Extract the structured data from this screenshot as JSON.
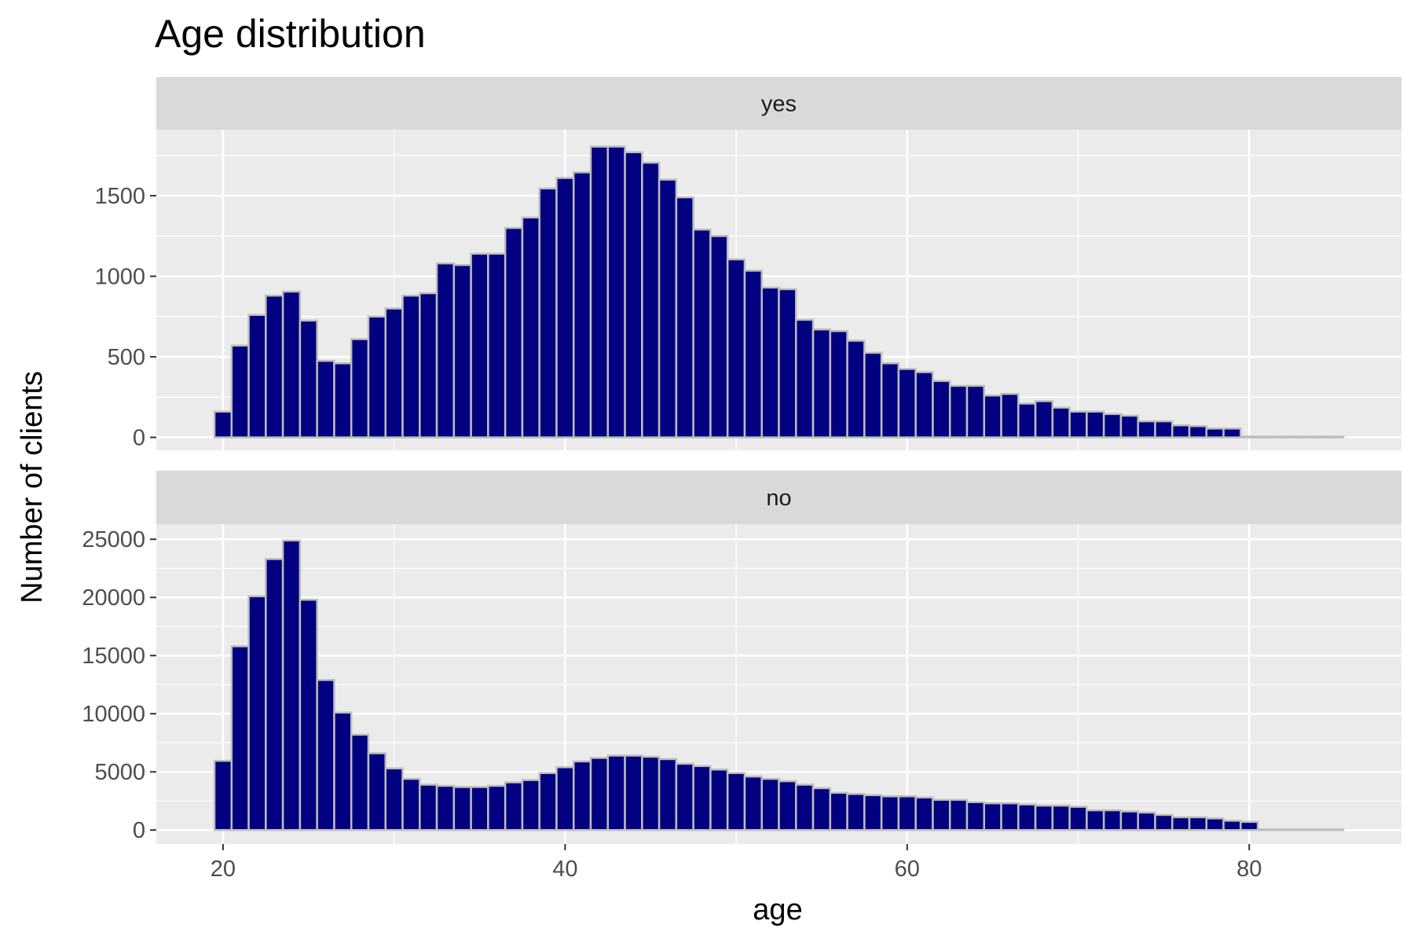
{
  "chart_data": {
    "type": "bar",
    "title": "Age distribution",
    "xlabel": "age",
    "ylabel": "Number of clients",
    "xlim": [
      16.1,
      88.9
    ],
    "xticks": [
      20,
      40,
      60,
      80
    ],
    "bin_width": 1,
    "grid": true,
    "colors": {
      "bar_fill": "#000080",
      "bar_border": "#bdbdbd",
      "panel_bg": "#ebebeb",
      "strip_bg": "#d9d9d9",
      "grid": "#ffffff"
    },
    "x": [
      20,
      21,
      22,
      23,
      24,
      25,
      26,
      27,
      28,
      29,
      30,
      31,
      32,
      33,
      34,
      35,
      36,
      37,
      38,
      39,
      40,
      41,
      42,
      43,
      44,
      45,
      46,
      47,
      48,
      49,
      50,
      51,
      52,
      53,
      54,
      55,
      56,
      57,
      58,
      59,
      60,
      61,
      62,
      63,
      64,
      65,
      66,
      67,
      68,
      69,
      70,
      71,
      72,
      73,
      74,
      75,
      76,
      77,
      78,
      79,
      80,
      81,
      82,
      83,
      84,
      85
    ],
    "panels": [
      {
        "strip": "yes",
        "ylim": [
          -80,
          1910
        ],
        "yticks": [
          0,
          500,
          1000,
          1500
        ],
        "values": [
          160,
          570,
          760,
          880,
          905,
          725,
          475,
          460,
          610,
          750,
          800,
          880,
          895,
          1080,
          1070,
          1140,
          1140,
          1300,
          1365,
          1545,
          1610,
          1645,
          1805,
          1805,
          1770,
          1705,
          1600,
          1490,
          1290,
          1250,
          1105,
          1035,
          930,
          920,
          730,
          670,
          660,
          600,
          525,
          460,
          425,
          405,
          350,
          320,
          320,
          260,
          270,
          210,
          225,
          185,
          160,
          160,
          145,
          135,
          100,
          100,
          75,
          70,
          55,
          55,
          5,
          5,
          5,
          5,
          5,
          5
        ]
      },
      {
        "strip": "no",
        "ylim": [
          -1200,
          26300
        ],
        "yticks": [
          0,
          5000,
          10000,
          15000,
          20000,
          25000
        ],
        "values": [
          5950,
          15800,
          20100,
          23300,
          24900,
          19800,
          12900,
          10100,
          8200,
          6600,
          5300,
          4400,
          3900,
          3800,
          3700,
          3700,
          3800,
          4100,
          4300,
          4900,
          5400,
          5900,
          6200,
          6400,
          6400,
          6300,
          6100,
          5700,
          5500,
          5200,
          4900,
          4600,
          4400,
          4200,
          3900,
          3600,
          3200,
          3100,
          3000,
          2900,
          2900,
          2800,
          2600,
          2600,
          2400,
          2300,
          2300,
          2200,
          2100,
          2100,
          2000,
          1700,
          1700,
          1600,
          1500,
          1300,
          1100,
          1100,
          1000,
          800,
          700,
          50,
          50,
          50,
          50,
          50
        ]
      }
    ]
  }
}
